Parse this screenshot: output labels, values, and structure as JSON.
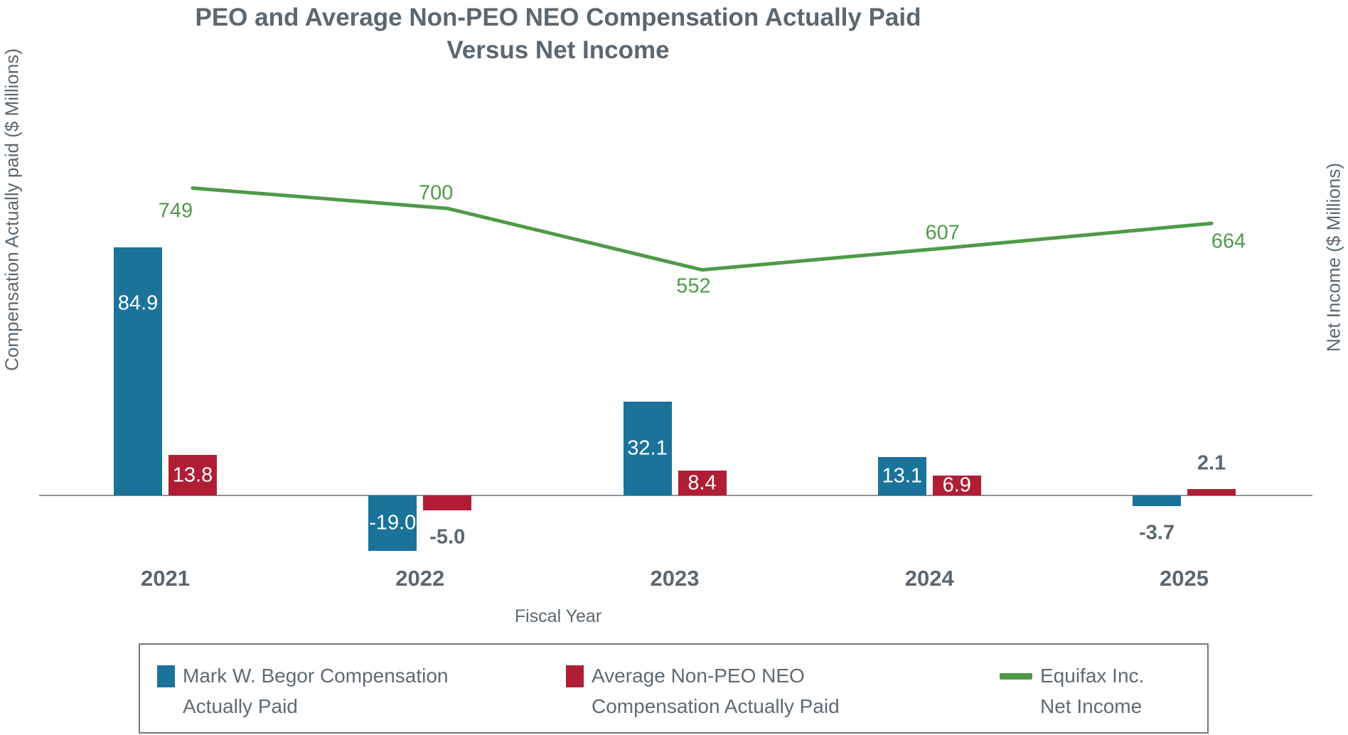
{
  "chart_data": {
    "type": "combo-bar-line",
    "title_lines": [
      "PEO and Average Non-PEO NEO Compensation Actually Paid",
      "Versus Net Income"
    ],
    "categories": [
      "2021",
      "2022",
      "2023",
      "2024",
      "2025"
    ],
    "series": [
      {
        "name": "Mark W. Begor Compensation Actually Paid",
        "type": "bar",
        "color": "#1B7399",
        "values": [
          84.9,
          -19.0,
          32.1,
          13.1,
          -3.7
        ],
        "labels": [
          "84.9",
          "-19.0",
          "32.1",
          "13.1",
          "-3.7"
        ],
        "label_placement": [
          "inside-high",
          "inside",
          "inside",
          "inside",
          "outside-below"
        ]
      },
      {
        "name": "Average Non-PEO NEO Compensation Actually Paid",
        "type": "bar",
        "color": "#B01E36",
        "values": [
          13.8,
          -5.0,
          8.4,
          6.9,
          2.1
        ],
        "labels": [
          "13.8",
          "-5.0",
          "8.4",
          "6.9",
          "2.1"
        ],
        "label_placement": [
          "inside",
          "outside-below",
          "inside",
          "inside",
          "outside-above"
        ]
      },
      {
        "name": "Equifax Inc. Net Income",
        "type": "line",
        "color": "#4F9A48",
        "values": [
          749,
          700,
          552,
          607,
          664
        ],
        "labels": [
          "749",
          "700",
          "552",
          "607",
          "664"
        ],
        "label_offsets": [
          [
            -24,
            32
          ],
          [
            -16,
            -21
          ],
          [
            -12,
            23
          ],
          [
            -20,
            -20
          ],
          [
            24,
            26
          ]
        ]
      }
    ],
    "xlabel": "Fiscal Year",
    "ylabel_left": "Compensation Actually paid ($ Millions)",
    "ylabel_right": "Net Income ($ Millions)",
    "axis_zero_is_shared": true,
    "gridlines": false,
    "legend_position": "bottom",
    "legend": {
      "items": [
        {
          "swatch": "bar",
          "color": "#1B7399",
          "lines": [
            "Mark W. Begor Compensation",
            "Actually Paid"
          ]
        },
        {
          "swatch": "bar",
          "color": "#B01E36",
          "lines": [
            "Average Non-PEO NEO",
            "Compensation Actually Paid"
          ]
        },
        {
          "swatch": "line",
          "color": "#4F9A48",
          "lines": [
            "Equifax Inc.",
            "Net Income"
          ]
        }
      ]
    },
    "text_color": "#5B6770",
    "axis_line_color": "#8E9398"
  }
}
